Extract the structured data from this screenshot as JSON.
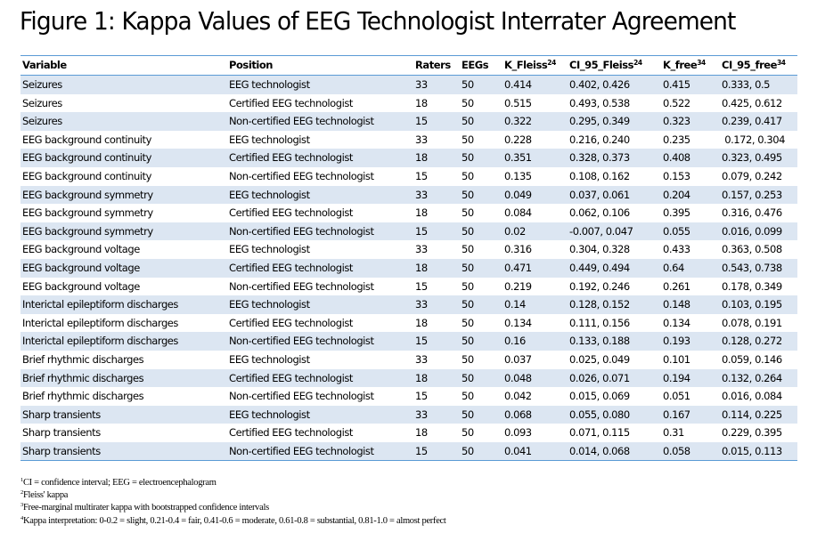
{
  "title": "Figure 1: Kappa Values of EEG Technologist Interrater Agreement",
  "colors": {
    "rule": "#5b9bd5",
    "stripe": "#dce6f2"
  },
  "table": {
    "columns": [
      {
        "label": "Variable",
        "sup": ""
      },
      {
        "label": "Position",
        "sup": ""
      },
      {
        "label": "Raters",
        "sup": ""
      },
      {
        "label": "EEGs",
        "sup": ""
      },
      {
        "label": "K_Fleiss",
        "sup": "24"
      },
      {
        "label": "CI_95_Fleiss",
        "sup": "24"
      },
      {
        "label": "K_free",
        "sup": "34"
      },
      {
        "label": "CI_95_free",
        "sup": "34"
      }
    ],
    "rows": [
      [
        "Seizures",
        "EEG technologist",
        "33",
        "50",
        "0.414",
        "0.402, 0.426",
        "0.415",
        "0.333, 0.5"
      ],
      [
        "Seizures",
        "Certified EEG technologist",
        "18",
        "50",
        "0.515",
        "0.493, 0.538",
        "0.522",
        "0.425, 0.612"
      ],
      [
        "Seizures",
        "Non-certified EEG technologist",
        "15",
        "50",
        "0.322",
        "0.295, 0.349",
        "0.323",
        "0.239, 0.417"
      ],
      [
        "EEG background continuity",
        "EEG technologist",
        "33",
        "50",
        "0.228",
        "0.216, 0.240",
        "0.235",
        " 0.172, 0.304"
      ],
      [
        "EEG background continuity",
        "Certified EEG technologist",
        "18",
        "50",
        "0.351",
        "0.328, 0.373",
        "0.408",
        "0.323, 0.495"
      ],
      [
        "EEG background continuity",
        "Non-certified EEG technologist",
        "15",
        "50",
        "0.135",
        "0.108, 0.162",
        "0.153",
        "0.079, 0.242"
      ],
      [
        "EEG background symmetry",
        "EEG technologist",
        "33",
        "50",
        "0.049",
        "0.037, 0.061",
        "0.204",
        "0.157, 0.253"
      ],
      [
        "EEG background symmetry",
        "Certified EEG technologist",
        "18",
        "50",
        "0.084",
        "0.062, 0.106",
        "0.395",
        "0.316, 0.476"
      ],
      [
        "EEG background symmetry",
        "Non-certified EEG technologist",
        "15",
        "50",
        "0.02",
        "-0.007, 0.047",
        "0.055",
        "0.016, 0.099"
      ],
      [
        "EEG background voltage",
        "EEG technologist",
        "33",
        "50",
        "0.316",
        "0.304, 0.328",
        "0.433",
        "0.363, 0.508"
      ],
      [
        "EEG background voltage",
        "Certified EEG technologist",
        "18",
        "50",
        "0.471",
        "0.449, 0.494",
        "0.64",
        "0.543, 0.738"
      ],
      [
        "EEG background voltage",
        "Non-certified EEG technologist",
        "15",
        "50",
        "0.219",
        "0.192, 0.246",
        "0.261",
        "0.178, 0.349"
      ],
      [
        "Interictal epileptiform discharges",
        "EEG technologist",
        "33",
        "50",
        "0.14",
        "0.128, 0.152",
        "0.148",
        "0.103, 0.195"
      ],
      [
        "Interictal epileptiform discharges",
        "Certified EEG technologist",
        "18",
        "50",
        "0.134",
        "0.111, 0.156",
        "0.134",
        "0.078, 0.191"
      ],
      [
        "Interictal epileptiform discharges",
        "Non-certified EEG technologist",
        "15",
        "50",
        "0.16",
        "0.133, 0.188",
        "0.193",
        "0.128, 0.272"
      ],
      [
        "Brief rhythmic discharges",
        "EEG technologist",
        "33",
        "50",
        "0.037",
        "0.025, 0.049",
        "0.101",
        "0.059, 0.146"
      ],
      [
        "Brief rhythmic discharges",
        "Certified EEG technologist",
        "18",
        "50",
        "0.048",
        "0.026, 0.071",
        "0.194",
        "0.132, 0.264"
      ],
      [
        "Brief rhythmic discharges",
        "Non-certified EEG technologist",
        "15",
        "50",
        "0.042",
        "0.015, 0.069",
        "0.051",
        "0.016, 0.084"
      ],
      [
        "Sharp transients",
        "EEG technologist",
        "33",
        "50",
        "0.068",
        "0.055, 0.080",
        "0.167",
        "0.114, 0.225"
      ],
      [
        "Sharp transients",
        "Certified EEG technologist",
        "18",
        "50",
        "0.093",
        "0.071, 0.115",
        "0.31",
        "0.229, 0.395"
      ],
      [
        "Sharp transients",
        "Non-certified EEG technologist",
        "15",
        "50",
        "0.041",
        "0.014, 0.068",
        "0.058",
        "0.015, 0.113"
      ]
    ]
  },
  "footnotes": [
    {
      "sup": "1",
      "text": "CI = confidence interval; EEG = electroencephalogram"
    },
    {
      "sup": "2",
      "text": "Fleiss' kappa"
    },
    {
      "sup": "3",
      "text": "Free-marginal multirater kappa with bootstrapped confidence intervals"
    },
    {
      "sup": "4",
      "text": "Kappa interpretation: 0-0.2 = slight, 0.21-0.4 = fair, 0.41-0.6 = moderate, 0.61-0.8 = substantial, 0.81-1.0 = almost perfect"
    }
  ]
}
